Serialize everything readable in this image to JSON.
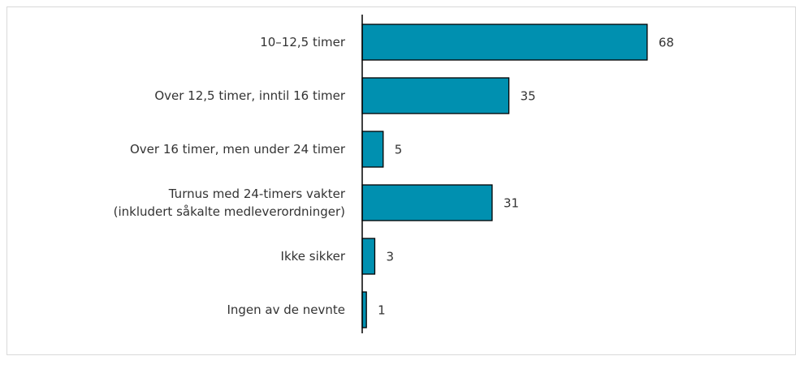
{
  "chart_data": {
    "type": "bar",
    "orientation": "horizontal",
    "categories": [
      "10–12,5 timer",
      "Over 12,5 timer, inntil 16 timer",
      "Over 16 timer, men under 24 timer",
      "Turnus med 24-timers vakter\n(inkludert såkalte medleverordninger)",
      "Ikke sikker",
      "Ingen av de nevnte"
    ],
    "values": [
      68,
      35,
      5,
      31,
      3,
      1
    ],
    "color": "#0090b0",
    "xlim": [
      0,
      100
    ]
  }
}
